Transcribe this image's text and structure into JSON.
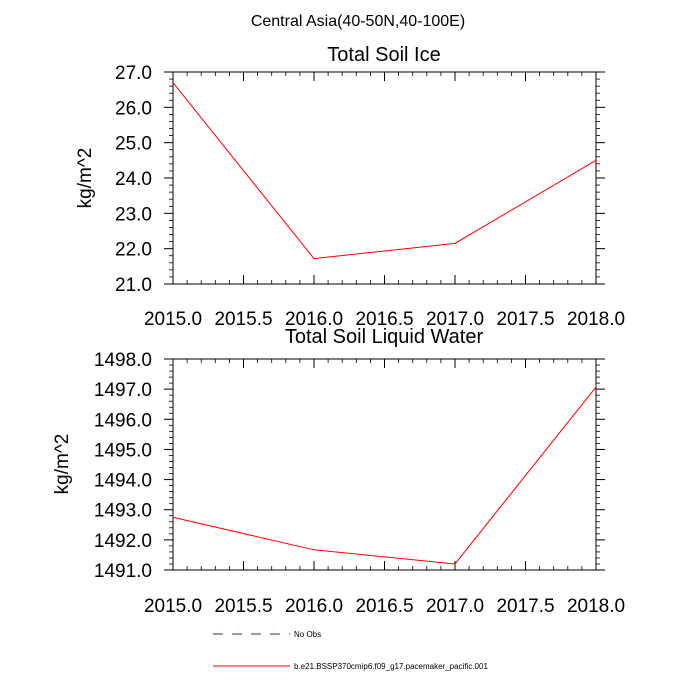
{
  "suptitle": "Central Asia(40-50N,40-100E)",
  "colors": {
    "series": "#ff0000",
    "obs": "#2f2fa0",
    "axis": "#000000"
  },
  "chart_data": [
    {
      "type": "line",
      "title": "Total Soil Ice",
      "ylabel": "kg/m^2",
      "xlabel": "",
      "xlim": [
        2015.0,
        2018.0
      ],
      "ylim": [
        21.0,
        27.0
      ],
      "xticks": [
        2015.0,
        2015.5,
        2016.0,
        2016.5,
        2017.0,
        2017.5,
        2018.0
      ],
      "xtick_labels": [
        "2015.0",
        "2015.5",
        "2016.0",
        "2016.5",
        "2017.0",
        "2017.5",
        "2018.0"
      ],
      "yticks": [
        21.0,
        22.0,
        23.0,
        24.0,
        25.0,
        26.0,
        27.0
      ],
      "ytick_labels": [
        "21.0",
        "22.0",
        "23.0",
        "24.0",
        "25.0",
        "26.0",
        "27.0"
      ],
      "series": [
        {
          "name": "b.e21.BSSP370cmip6.f09_g17.pacemaker_pacific.001",
          "x": [
            2015,
            2016,
            2017,
            2018
          ],
          "values": [
            26.7,
            21.72,
            22.15,
            24.5
          ]
        }
      ]
    },
    {
      "type": "line",
      "title": "Total Soil Liquid Water",
      "ylabel": "kg/m^2",
      "xlabel": "",
      "xlim": [
        2015.0,
        2018.0
      ],
      "ylim": [
        1491.0,
        1498.0
      ],
      "xticks": [
        2015.0,
        2015.5,
        2016.0,
        2016.5,
        2017.0,
        2017.5,
        2018.0
      ],
      "xtick_labels": [
        "2015.0",
        "2015.5",
        "2016.0",
        "2016.5",
        "2017.0",
        "2017.5",
        "2018.0"
      ],
      "yticks": [
        1491.0,
        1492.0,
        1493.0,
        1494.0,
        1495.0,
        1496.0,
        1497.0,
        1498.0
      ],
      "ytick_labels": [
        "1491.0",
        "1492.0",
        "1493.0",
        "1494.0",
        "1495.0",
        "1496.0",
        "1497.0",
        "1498.0"
      ],
      "series": [
        {
          "name": "b.e21.BSSP370cmip6.f09_g17.pacemaker_pacific.001",
          "x": [
            2015,
            2016,
            2017,
            2018
          ],
          "values": [
            1492.75,
            1491.67,
            1491.2,
            1497.07
          ]
        }
      ]
    }
  ],
  "legend": {
    "position": "bottom-center",
    "entries": [
      {
        "label": "No Obs",
        "style": "dashed",
        "color": "#2f2fa0"
      },
      {
        "label": "b.e21.BSSP370cmip6.f09_g17.pacemaker_pacific.001",
        "style": "solid",
        "color": "#ff0000"
      }
    ]
  }
}
